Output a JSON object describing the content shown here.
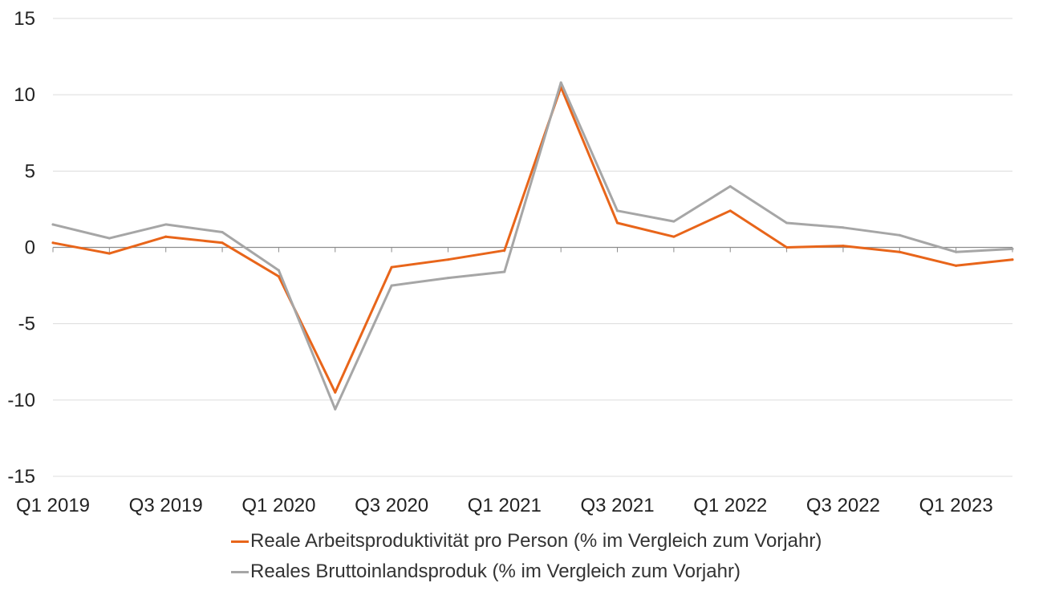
{
  "chart_data": {
    "type": "line",
    "title": "",
    "xlabel": "",
    "ylabel": "",
    "ylim": [
      -15,
      15
    ],
    "yticks": [
      15,
      10,
      5,
      0,
      -5,
      -10,
      -15
    ],
    "categories": [
      "Q1 2019",
      "Q2 2019",
      "Q3 2019",
      "Q4 2019",
      "Q1 2020",
      "Q2 2020",
      "Q3 2020",
      "Q4 2020",
      "Q1 2021",
      "Q2 2021",
      "Q3 2021",
      "Q4 2021",
      "Q1 2022",
      "Q2 2022",
      "Q3 2022",
      "Q4 2022",
      "Q1 2023",
      "Q2 2023"
    ],
    "xtick_labels": [
      "Q1 2019",
      "Q3 2019",
      "Q1 2020",
      "Q3 2020",
      "Q1 2021",
      "Q3 2021",
      "Q1 2022",
      "Q3 2022",
      "Q1 2023"
    ],
    "grid": "horizontal",
    "legend_position": "bottom",
    "series": [
      {
        "name": "Reale Arbeitsproduktivität pro Person (% im Vergleich zum Vorjahr)",
        "color": "#e8651a",
        "values": [
          0.3,
          -0.4,
          0.7,
          0.3,
          -1.9,
          -9.5,
          -1.3,
          -0.8,
          -0.2,
          10.5,
          1.6,
          0.7,
          2.4,
          0.0,
          0.1,
          -0.3,
          -1.2,
          -0.8
        ]
      },
      {
        "name": "Reales Bruttoinlandsproduk (% im Vergleich zum Vorjahr)",
        "color": "#a6a6a6",
        "values": [
          1.5,
          0.6,
          1.5,
          1.0,
          -1.5,
          -10.6,
          -2.5,
          -2.0,
          -1.6,
          10.8,
          2.4,
          1.7,
          4.0,
          1.6,
          1.3,
          0.8,
          -0.3,
          -0.1
        ]
      }
    ]
  }
}
